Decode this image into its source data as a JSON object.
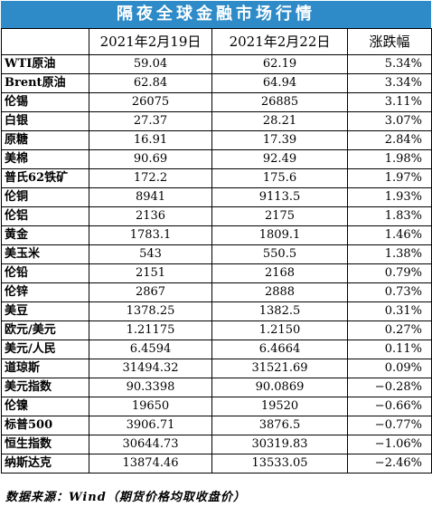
{
  "title": "隔夜全球金融市场行情",
  "headers": [
    "",
    "2021年2月19日",
    "2021年2月22日",
    "涨跌幅"
  ],
  "rows": [
    {
      "name": "WTI原油",
      "feb19": "59.04",
      "feb22": "62.19",
      "change": "5.34%"
    },
    {
      "name": "Brent原油",
      "feb19": "62.84",
      "feb22": "64.94",
      "change": "3.34%"
    },
    {
      "name": "伦锡",
      "feb19": "26075",
      "feb22": "26885",
      "change": "3.11%"
    },
    {
      "name": "白银",
      "feb19": "27.37",
      "feb22": "28.21",
      "change": "3.07%"
    },
    {
      "name": "原糖",
      "feb19": "16.91",
      "feb22": "17.39",
      "change": "2.84%"
    },
    {
      "name": "美棉",
      "feb19": "90.69",
      "feb22": "92.49",
      "change": "1.98%"
    },
    {
      "name": "普氏62铁矿",
      "feb19": "172.2",
      "feb22": "175.6",
      "change": "1.97%"
    },
    {
      "name": "伦铜",
      "feb19": "8941",
      "feb22": "9113.5",
      "change": "1.93%"
    },
    {
      "name": "伦铝",
      "feb19": "2136",
      "feb22": "2175",
      "change": "1.83%"
    },
    {
      "name": "黄金",
      "feb19": "1783.1",
      "feb22": "1809.1",
      "change": "1.46%"
    },
    {
      "name": "美玉米",
      "feb19": "543",
      "feb22": "550.5",
      "change": "1.38%"
    },
    {
      "name": "伦铅",
      "feb19": "2151",
      "feb22": "2168",
      "change": "0.79%"
    },
    {
      "name": "伦锌",
      "feb19": "2867",
      "feb22": "2888",
      "change": "0.73%"
    },
    {
      "name": "美豆",
      "feb19": "1378.25",
      "feb22": "1382.5",
      "change": "0.31%"
    },
    {
      "name": "欧元/美元",
      "feb19": "1.21175",
      "feb22": "1.2150",
      "change": "0.27%"
    },
    {
      "name": "美元/人民",
      "feb19": "6.4594",
      "feb22": "6.4664",
      "change": "0.11%"
    },
    {
      "name": "道琼斯",
      "feb19": "31494.32",
      "feb22": "31521.69",
      "change": "0.09%"
    },
    {
      "name": "美元指数",
      "feb19": "90.3398",
      "feb22": "90.0869",
      "change": "−0.28%"
    },
    {
      "name": "伦镍",
      "feb19": "19650",
      "feb22": "19520",
      "change": "−0.66%"
    },
    {
      "name": "标普500",
      "feb19": "3906.71",
      "feb22": "3876.5",
      "change": "−0.77%"
    },
    {
      "name": "恒生指数",
      "feb19": "30644.73",
      "feb22": "30319.83",
      "change": "−1.06%"
    },
    {
      "name": "纳斯达克",
      "feb19": "13874.46",
      "feb22": "13533.05",
      "change": "−2.46%"
    }
  ],
  "footer": "数据来源：Wind（期货价格均取收盘价）",
  "colors": {
    "title_bg": "#2e8bc8",
    "title_text": "#ffffff",
    "border": "#000000"
  }
}
